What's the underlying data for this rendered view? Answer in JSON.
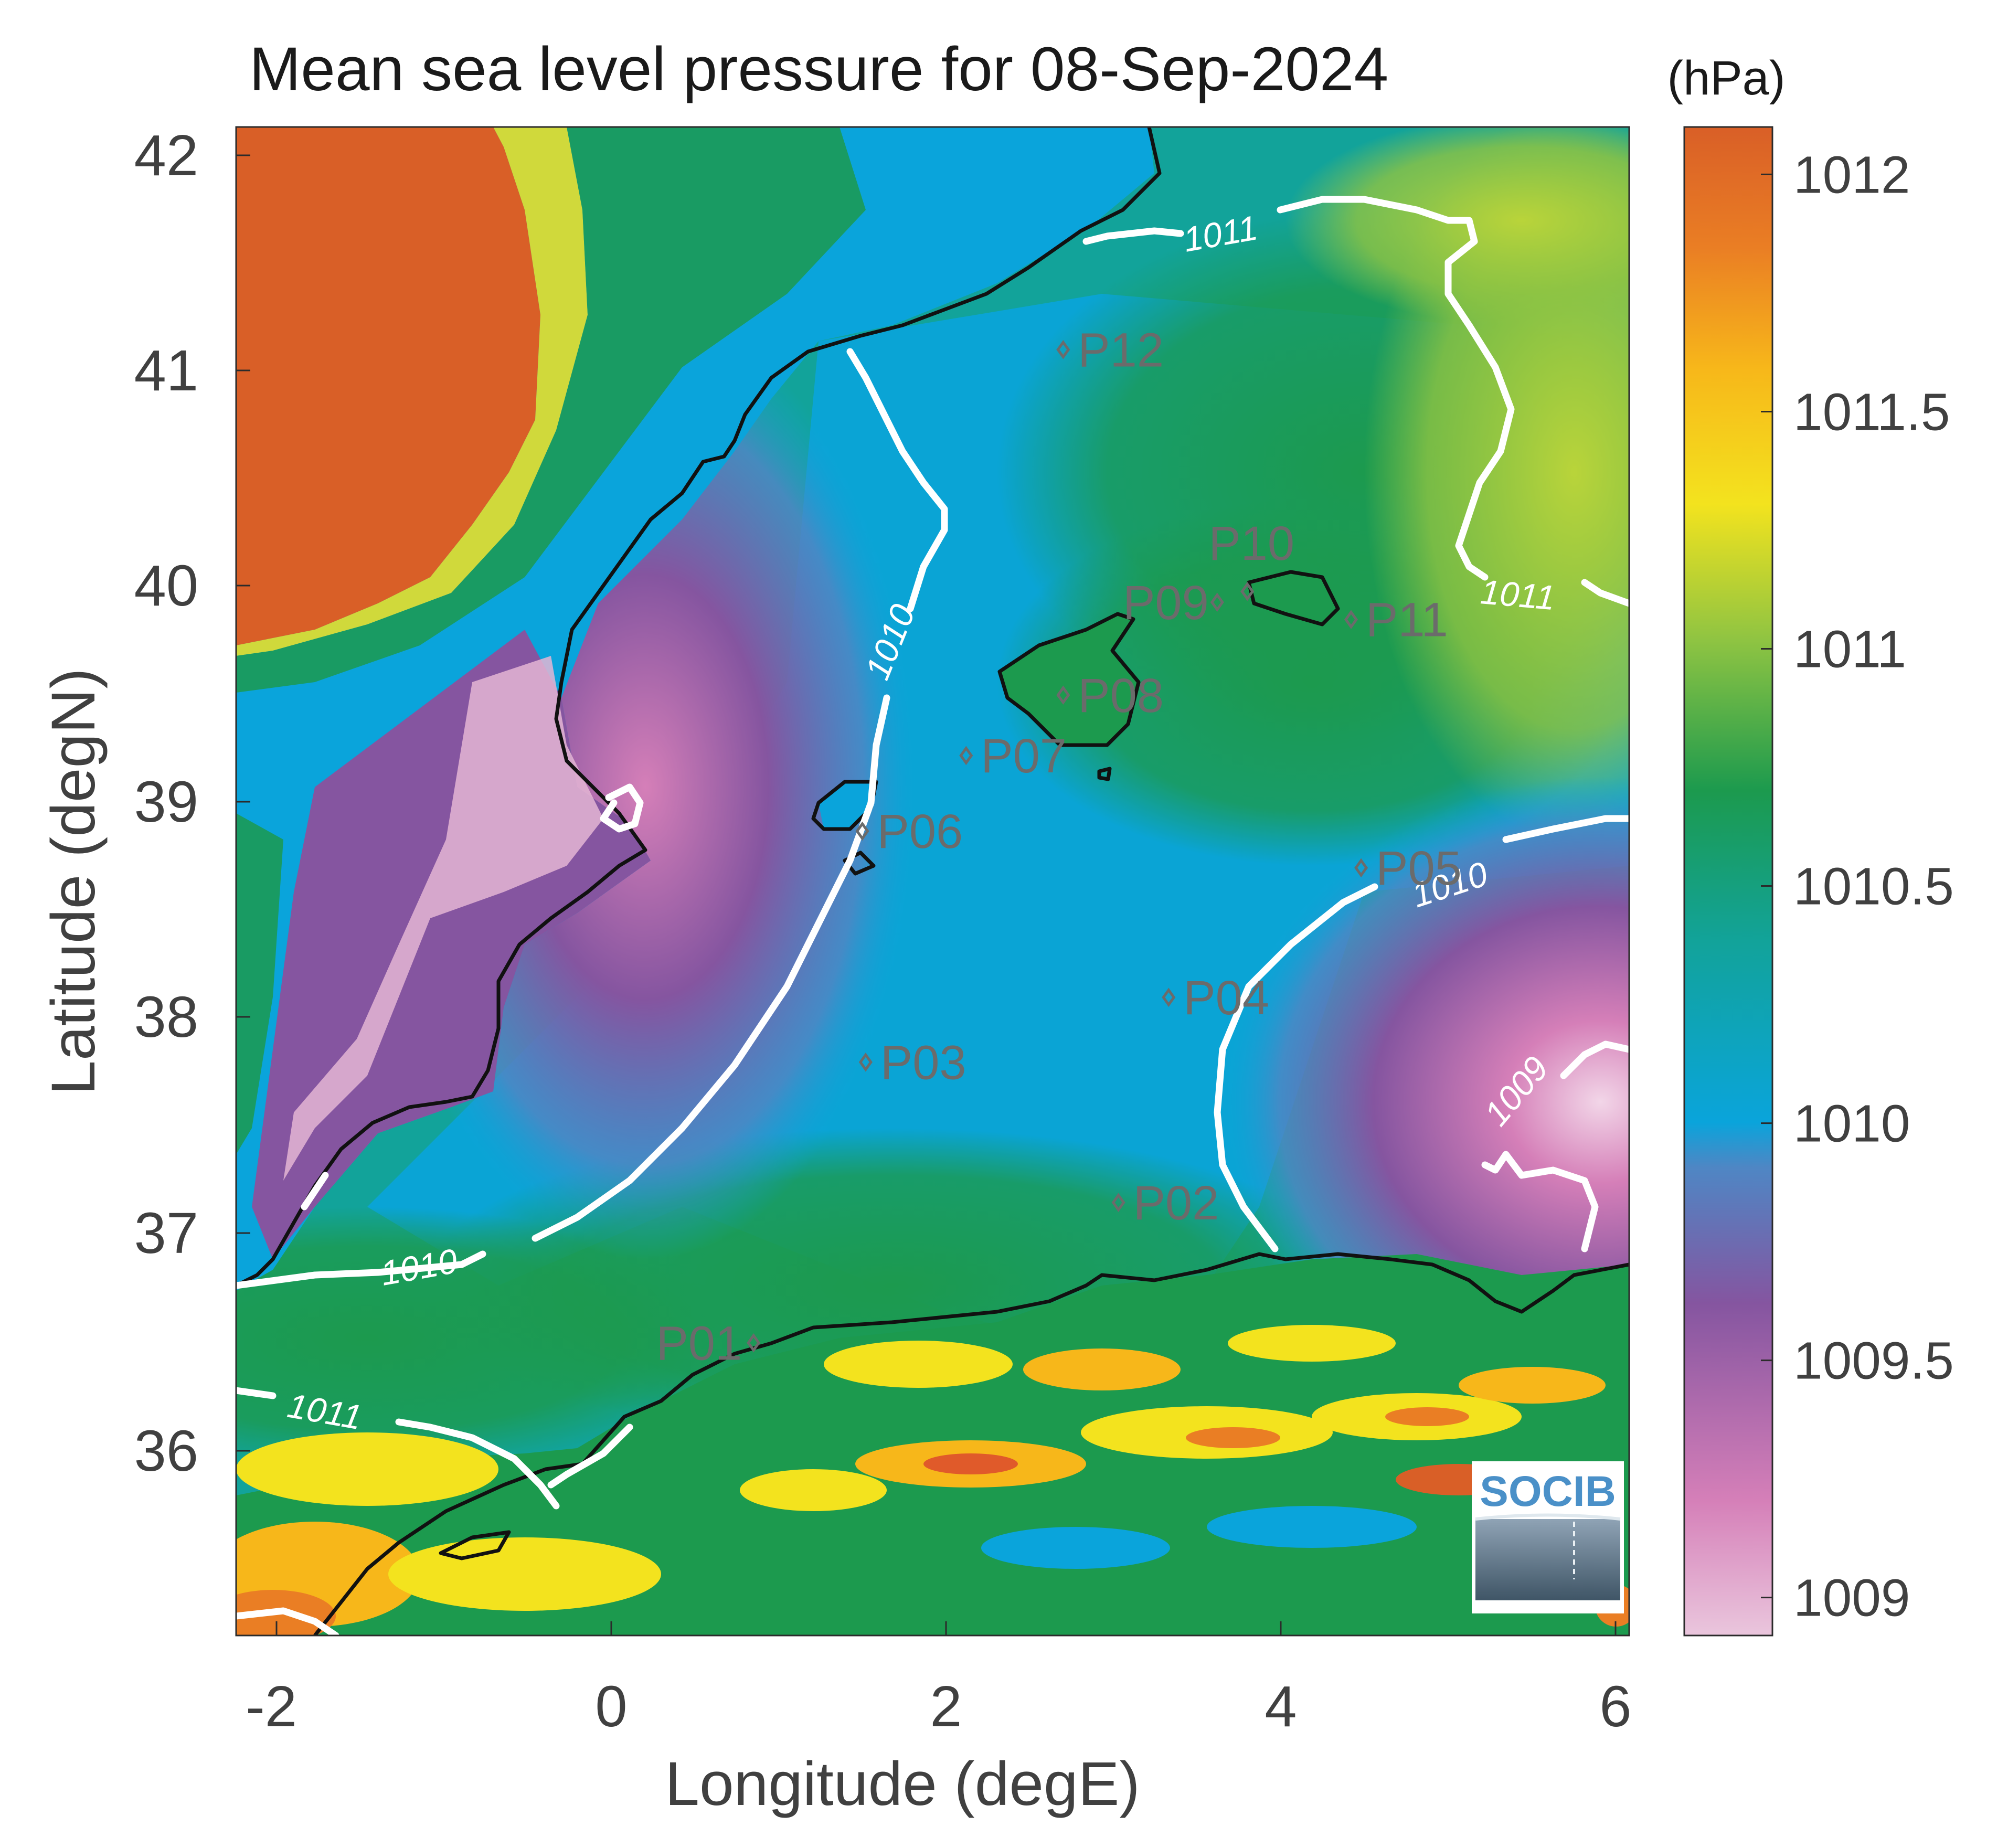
{
  "title": "Mean sea level pressure for 08-Sep-2024",
  "xlabel": "Longitude (degE)",
  "ylabel": "Latitude (degN)",
  "colorbar_unit": "(hPa)",
  "colorbar_ticks": [
    "1009",
    "1009.5",
    "1010",
    "1010.5",
    "1011",
    "1011.5",
    "1012"
  ],
  "colorbar_range": [
    1008.92,
    1012.1
  ],
  "x_ticks": [
    "-2",
    "0",
    "2",
    "4",
    "6"
  ],
  "y_ticks": [
    "36",
    "37",
    "38",
    "39",
    "40",
    "41",
    "42"
  ],
  "xlim": [
    -2.2,
    6.1
  ],
  "ylim": [
    35.05,
    42.15
  ],
  "contour_labels": [
    "1009",
    "1010",
    "1010",
    "1010",
    "1011",
    "1011",
    "1011"
  ],
  "logo_text": "SOCIB",
  "colors": {
    "high": "#d95f27",
    "mid_high": "#f3e31e",
    "mid": "#1c9a4e",
    "low_mid": "#0aa4db",
    "low": "#8555a0",
    "lowest": "#eac6dd",
    "coast": "#111111",
    "contour": "#ffffff"
  },
  "stations": [
    {
      "name": "P01",
      "lon": 0.85,
      "lat": 36.5
    },
    {
      "name": "P02",
      "lon": 3.03,
      "lat": 37.15
    },
    {
      "name": "P03",
      "lon": 1.52,
      "lat": 37.8
    },
    {
      "name": "P04",
      "lon": 3.33,
      "lat": 38.1
    },
    {
      "name": "P05",
      "lon": 4.48,
      "lat": 38.7
    },
    {
      "name": "P06",
      "lon": 1.5,
      "lat": 38.87
    },
    {
      "name": "P07",
      "lon": 2.12,
      "lat": 39.22
    },
    {
      "name": "P08",
      "lon": 2.7,
      "lat": 39.5
    },
    {
      "name": "P09",
      "lon": 3.62,
      "lat": 39.93
    },
    {
      "name": "P10",
      "lon": 3.8,
      "lat": 39.98
    },
    {
      "name": "P11",
      "lon": 4.42,
      "lat": 39.85
    },
    {
      "name": "P12",
      "lon": 2.7,
      "lat": 41.1
    }
  ]
}
